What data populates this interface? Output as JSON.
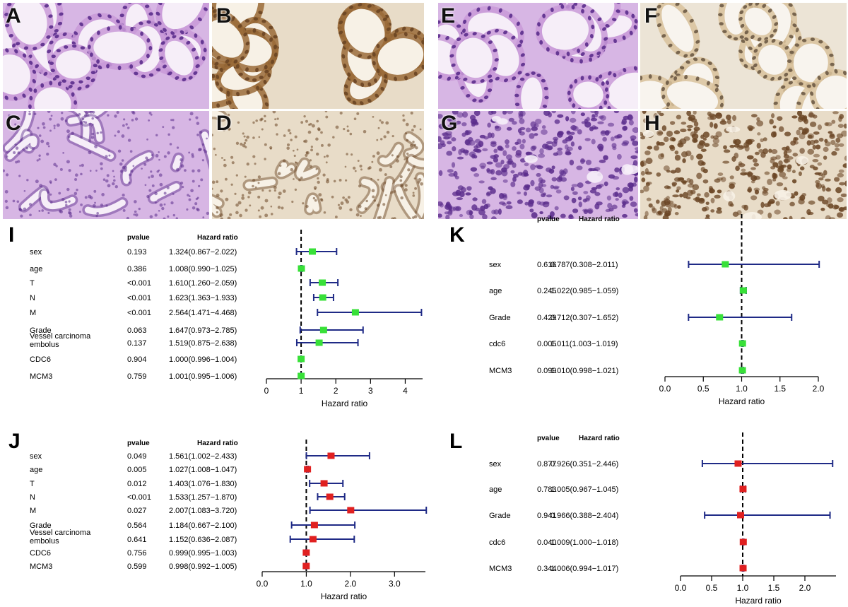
{
  "figure": {
    "micro_panels": [
      {
        "letter": "A",
        "stain": "he",
        "texture": "glands"
      },
      {
        "letter": "B",
        "stain": "ihc",
        "texture": "glands"
      },
      {
        "letter": "C",
        "stain": "he",
        "texture": "tubular"
      },
      {
        "letter": "D",
        "stain": "ihc",
        "texture": "tubular"
      },
      {
        "letter": "E",
        "stain": "he",
        "texture": "glands"
      },
      {
        "letter": "F",
        "stain": "ihc-light",
        "texture": "glands"
      },
      {
        "letter": "G",
        "stain": "he",
        "texture": "solid"
      },
      {
        "letter": "H",
        "stain": "ihc",
        "texture": "solid"
      }
    ],
    "colors": {
      "he_background": "#d7b6e4",
      "he_nuclei": "#5b2d8c",
      "ihc_background": "#e8dcc8",
      "ihc_brown": "#9a6b38",
      "ihc_nuclei": "#6a4524",
      "ci_line": "#1f2a86",
      "green_marker": "#38e038",
      "red_marker": "#e02020"
    }
  },
  "chart_data": [
    {
      "panel": "I",
      "type": "forest",
      "column_headers": {
        "pvalue": "pvalue",
        "hr": "Hazard ratio"
      },
      "xlabel": "Hazard ratio",
      "xlim": [
        0,
        4.5
      ],
      "ticks": [
        "0",
        "1",
        "2",
        "3",
        "4"
      ],
      "tick_values": [
        0,
        1,
        2,
        3,
        4
      ],
      "reference": 1,
      "marker_color": "green",
      "rows": [
        {
          "label": "sex",
          "pvalue": "0.193",
          "hr_text": "1.324(0.867−2.022)",
          "hr": 1.324,
          "lo": 0.867,
          "hi": 2.022
        },
        {
          "label": "age",
          "pvalue": "0.386",
          "hr_text": "1.008(0.990−1.025)",
          "hr": 1.008,
          "lo": 0.99,
          "hi": 1.025
        },
        {
          "label": "T",
          "pvalue": "<0.001",
          "hr_text": "1.610(1.260−2.059)",
          "hr": 1.61,
          "lo": 1.26,
          "hi": 2.059
        },
        {
          "label": "N",
          "pvalue": "<0.001",
          "hr_text": "1.623(1.363−1.933)",
          "hr": 1.623,
          "lo": 1.363,
          "hi": 1.933
        },
        {
          "label": "M",
          "pvalue": "<0.001",
          "hr_text": "2.564(1.471−4.468)",
          "hr": 2.564,
          "lo": 1.471,
          "hi": 4.468
        },
        {
          "label": "Grade",
          "pvalue": "0.063",
          "hr_text": "1.647(0.973−2.785)",
          "hr": 1.647,
          "lo": 0.973,
          "hi": 2.785
        },
        {
          "label": "Vessel carcinoma\nembolus",
          "pvalue": "0.137",
          "hr_text": "1.519(0.875−2.638)",
          "hr": 1.519,
          "lo": 0.875,
          "hi": 2.638
        },
        {
          "label": "CDC6",
          "pvalue": "0.904",
          "hr_text": "1.000(0.996−1.004)",
          "hr": 1.0,
          "lo": 0.996,
          "hi": 1.004
        },
        {
          "label": "MCM3",
          "pvalue": "0.759",
          "hr_text": "1.001(0.995−1.006)",
          "hr": 1.001,
          "lo": 0.995,
          "hi": 1.006
        }
      ]
    },
    {
      "panel": "J",
      "type": "forest",
      "column_headers": {
        "pvalue": "pvalue",
        "hr": "Hazard ratio"
      },
      "xlabel": "Hazard ratio",
      "xlim": [
        0,
        3.7
      ],
      "ticks": [
        "0.0",
        "1.0",
        "2.0",
        "3.0"
      ],
      "tick_values": [
        0,
        1,
        2,
        3
      ],
      "reference": 1,
      "marker_color": "red",
      "rows": [
        {
          "label": "sex",
          "pvalue": "0.049",
          "hr_text": "1.561(1.002−2.433)",
          "hr": 1.561,
          "lo": 1.002,
          "hi": 2.433
        },
        {
          "label": "age",
          "pvalue": "0.005",
          "hr_text": "1.027(1.008−1.047)",
          "hr": 1.027,
          "lo": 1.008,
          "hi": 1.047
        },
        {
          "label": "T",
          "pvalue": "0.012",
          "hr_text": "1.403(1.076−1.830)",
          "hr": 1.403,
          "lo": 1.076,
          "hi": 1.83
        },
        {
          "label": "N",
          "pvalue": "<0.001",
          "hr_text": "1.533(1.257−1.870)",
          "hr": 1.533,
          "lo": 1.257,
          "hi": 1.87
        },
        {
          "label": "M",
          "pvalue": "0.027",
          "hr_text": "2.007(1.083−3.720)",
          "hr": 2.007,
          "lo": 1.083,
          "hi": 3.72
        },
        {
          "label": "Grade",
          "pvalue": "0.564",
          "hr_text": "1.184(0.667−2.100)",
          "hr": 1.184,
          "lo": 0.667,
          "hi": 2.1
        },
        {
          "label": "Vessel carcinoma\nembolus",
          "pvalue": "0.641",
          "hr_text": "1.152(0.636−2.087)",
          "hr": 1.152,
          "lo": 0.636,
          "hi": 2.087
        },
        {
          "label": "CDC6",
          "pvalue": "0.756",
          "hr_text": "0.999(0.995−1.003)",
          "hr": 0.999,
          "lo": 0.995,
          "hi": 1.003
        },
        {
          "label": "MCM3",
          "pvalue": "0.599",
          "hr_text": "0.998(0.992−1.005)",
          "hr": 0.998,
          "lo": 0.992,
          "hi": 1.005
        }
      ]
    },
    {
      "panel": "K",
      "type": "forest",
      "column_headers": {
        "pvalue": "pvalue",
        "hr": "Hazard ratio"
      },
      "xlabel": "Hazard ratio",
      "xlim": [
        0,
        2.0
      ],
      "ticks": [
        "0.0",
        "0.5",
        "1.0",
        "1.5",
        "2.0"
      ],
      "tick_values": [
        0,
        0.5,
        1.0,
        1.5,
        2.0
      ],
      "reference": 1,
      "marker_color": "green",
      "rows": [
        {
          "label": "sex",
          "pvalue": "0.616",
          "hr_text": "0.787(0.308−2.011)",
          "hr": 0.787,
          "lo": 0.308,
          "hi": 2.011
        },
        {
          "label": "age",
          "pvalue": "0.245",
          "hr_text": "1.022(0.985−1.059)",
          "hr": 1.022,
          "lo": 0.985,
          "hi": 1.059
        },
        {
          "label": "Grade",
          "pvalue": "0.429",
          "hr_text": "0.712(0.307−1.652)",
          "hr": 0.712,
          "lo": 0.307,
          "hi": 1.652
        },
        {
          "label": "cdc6",
          "pvalue": "0.005",
          "hr_text": "1.011(1.003−1.019)",
          "hr": 1.011,
          "lo": 1.003,
          "hi": 1.019
        },
        {
          "label": "MCM3",
          "pvalue": "0.099",
          "hr_text": "1.010(0.998−1.021)",
          "hr": 1.01,
          "lo": 0.998,
          "hi": 1.021
        }
      ]
    },
    {
      "panel": "L",
      "type": "forest",
      "column_headers": {
        "pvalue": "pvalue",
        "hr": "Hazard ratio"
      },
      "xlabel": "Hazard ratio",
      "xlim": [
        0,
        2.5
      ],
      "ticks": [
        "0.0",
        "0.5",
        "1.0",
        "1.5",
        "2.0"
      ],
      "tick_values": [
        0,
        0.5,
        1.0,
        1.5,
        2.0
      ],
      "reference": 1,
      "marker_color": "red",
      "rows": [
        {
          "label": "sex",
          "pvalue": "0.877",
          "hr_text": "0.926(0.351−2.446)",
          "hr": 0.926,
          "lo": 0.351,
          "hi": 2.446
        },
        {
          "label": "age",
          "pvalue": "0.783",
          "hr_text": "1.005(0.967−1.045)",
          "hr": 1.005,
          "lo": 0.967,
          "hi": 1.045
        },
        {
          "label": "Grade",
          "pvalue": "0.941",
          "hr_text": "0.966(0.388−2.404)",
          "hr": 0.966,
          "lo": 0.388,
          "hi": 2.404
        },
        {
          "label": "cdc6",
          "pvalue": "0.040",
          "hr_text": "1.009(1.000−1.018)",
          "hr": 1.009,
          "lo": 1.0,
          "hi": 1.018
        },
        {
          "label": "MCM3",
          "pvalue": "0.344",
          "hr_text": "1.006(0.994−1.017)",
          "hr": 1.006,
          "lo": 0.994,
          "hi": 1.017
        }
      ]
    }
  ]
}
